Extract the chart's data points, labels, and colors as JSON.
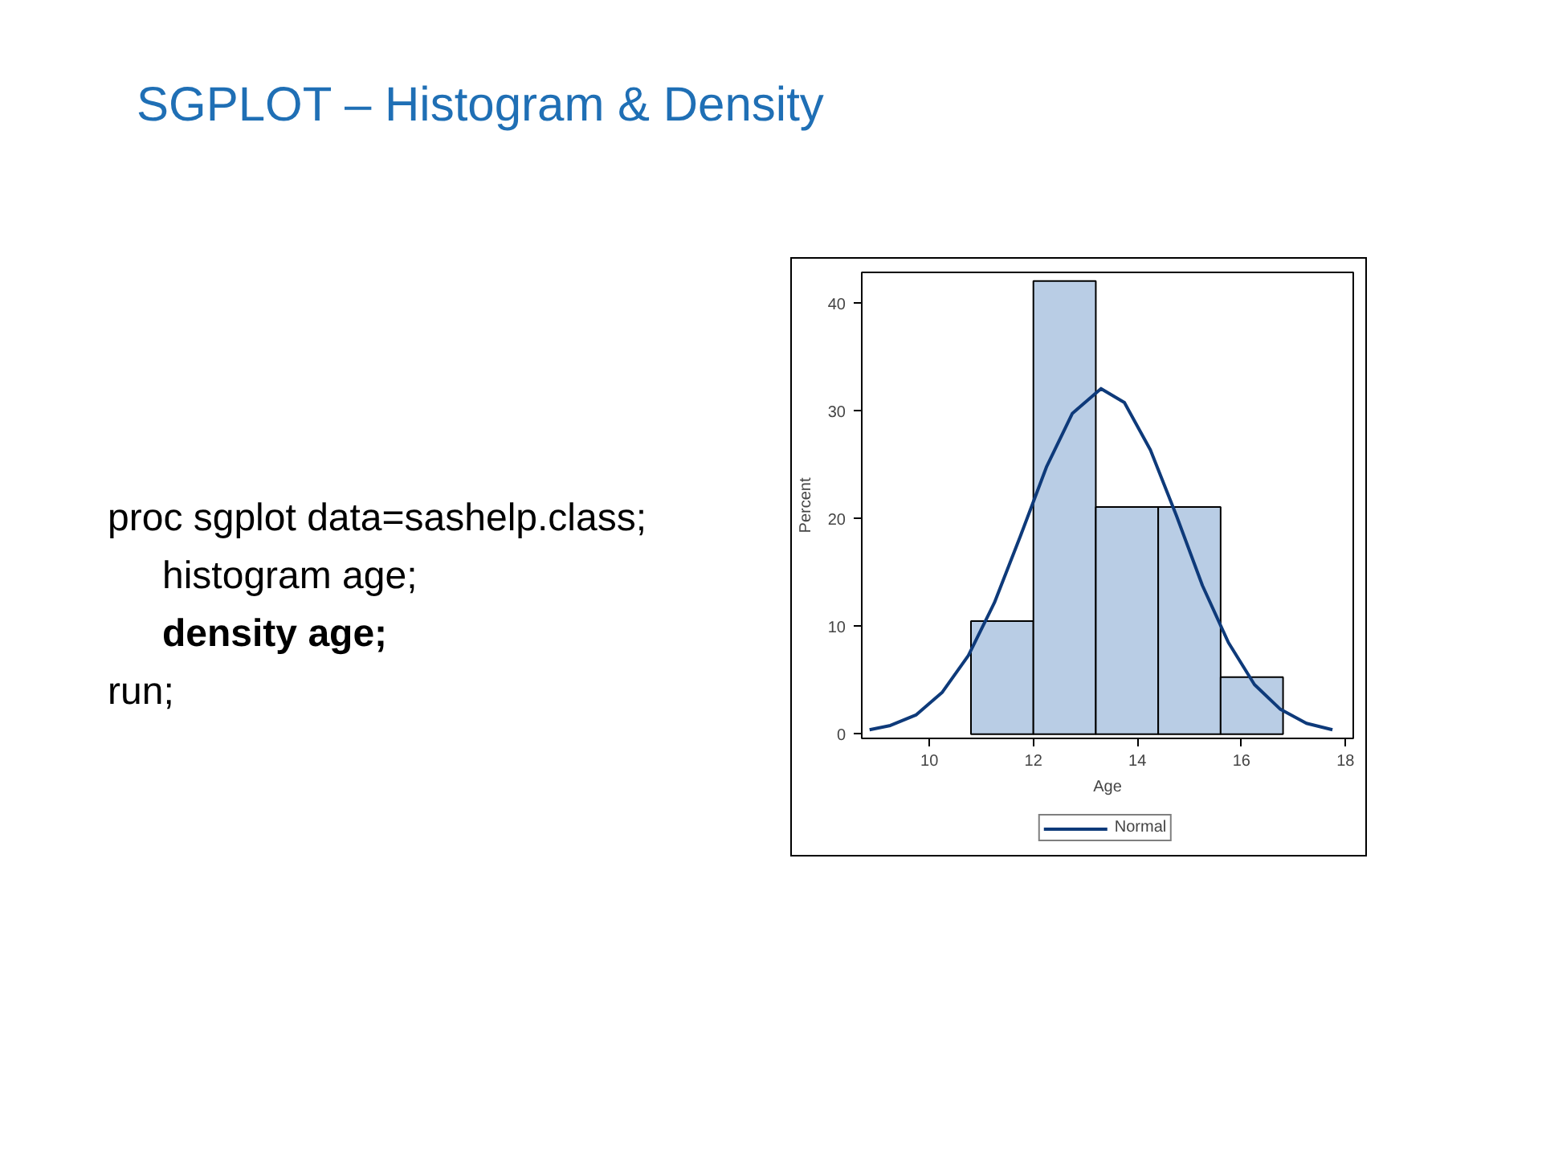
{
  "chart_data": {
    "type": "histogram",
    "title": "SGPLOT – Histogram & Density",
    "annotations": [
      "proc sgplot data=sashelp.class;",
      "histogram age;",
      "density age;",
      "run;"
    ],
    "xlabel": "Age",
    "ylabel": "Percent",
    "bins": [
      10.8,
      12.0,
      13.2,
      14.4,
      15.6,
      16.8
    ],
    "series": [
      {
        "color": "#b9cde5",
        "values": [
          10.5,
          42.1,
          21.1,
          21.1,
          5.3
        ]
      },
      {
        "type": "line",
        "name": "Normal",
        "color": "#0e3a7a",
        "x": [
          8.85,
          9.25,
          9.75,
          10.25,
          10.75,
          11.25,
          11.75,
          12.25,
          12.75,
          13.3,
          13.75,
          14.25,
          14.75,
          15.25,
          15.75,
          16.25,
          16.75,
          17.25,
          17.75
        ],
        "values": [
          0.4,
          0.8,
          1.8,
          3.9,
          7.3,
          12.2,
          18.4,
          24.8,
          29.8,
          32.1,
          30.8,
          26.4,
          20.3,
          13.8,
          8.5,
          4.6,
          2.3,
          1.0,
          0.4
        ]
      }
    ],
    "xlim": [
      8.7,
      18.15
    ],
    "ylim": [
      -0.4,
      42.9
    ],
    "xticks": [
      10,
      12,
      14,
      16,
      18
    ],
    "yticks": [
      0,
      10,
      20,
      30,
      40
    ],
    "grid": false,
    "legend": "bottom",
    "line_style": "solid",
    "marker": "none"
  }
}
